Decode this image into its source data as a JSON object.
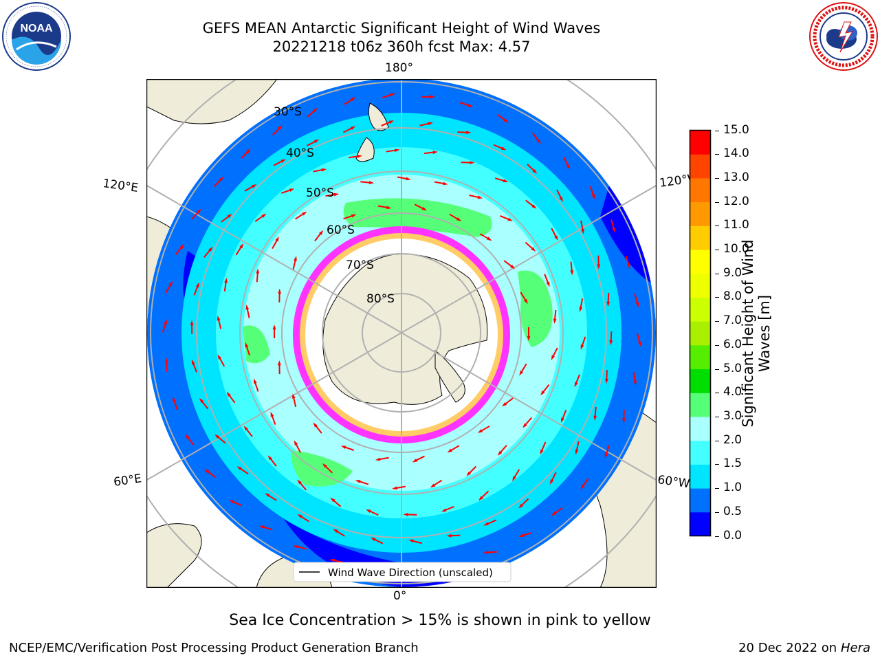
{
  "header": {
    "title_line1": "GEFS MEAN Antarctic Significant Height of Wind Waves",
    "title_line2": "20221218 t06z 360h fcst   Max: 4.57"
  },
  "logos": {
    "left": {
      "name": "noaa-logo",
      "text": "NOAA",
      "ring_text": "NATIONAL OCEANIC AND ATMOSPHERIC ADMINISTRATION · U.S. DEPARTMENT OF COMMERCE"
    },
    "right": {
      "name": "nws-logo",
      "ring_text": "NATIONAL WEATHER SERVICE"
    }
  },
  "map": {
    "projection": "south-polar-stereographic",
    "longitude_labels": {
      "top": "180°",
      "bottom": "0°",
      "upper_left": "120°E",
      "upper_right": "120°W",
      "lower_left": "60°E",
      "lower_right": "60°W"
    },
    "latitude_labels": [
      "30°S",
      "40°S",
      "50°S",
      "60°S",
      "70°S",
      "80°S"
    ],
    "legend_label": "Wind Wave Direction (unscaled)",
    "colors": {
      "land": "#efecd9",
      "ice_low": "#ff33ff",
      "ice_high": "#ffff66",
      "arrow": "#ff0000",
      "grid": "#b0b0b0"
    }
  },
  "colorbar": {
    "label": "Significant Height of Wind Waves [m]",
    "label_line1": "Significant Height of Wind",
    "label_line2": "Waves [m]",
    "ticks": [
      "0.0",
      "0.5",
      "1.0",
      "1.5",
      "2.0",
      "3.0",
      "4.0",
      "5.0",
      "6.0",
      "7.0",
      "8.0",
      "9.0",
      "10.0",
      "11.0",
      "12.0",
      "13.0",
      "14.0",
      "15.0"
    ],
    "colors": [
      "#0000ff",
      "#0070ff",
      "#00e5ff",
      "#44ffff",
      "#aaffff",
      "#55ff77",
      "#00dd00",
      "#55ee00",
      "#aaee00",
      "#ccff00",
      "#eeff00",
      "#ffff00",
      "#ffcc00",
      "#ff9900",
      "#ff7700",
      "#ff4400",
      "#ff0000"
    ]
  },
  "footer": {
    "note": "Sea Ice Concentration > 15% is shown in pink to yellow",
    "left": "NCEP/EMC/Verification Post Processing Product Generation Branch",
    "right_date": "20 Dec 2022 on",
    "right_host": "Hera"
  }
}
